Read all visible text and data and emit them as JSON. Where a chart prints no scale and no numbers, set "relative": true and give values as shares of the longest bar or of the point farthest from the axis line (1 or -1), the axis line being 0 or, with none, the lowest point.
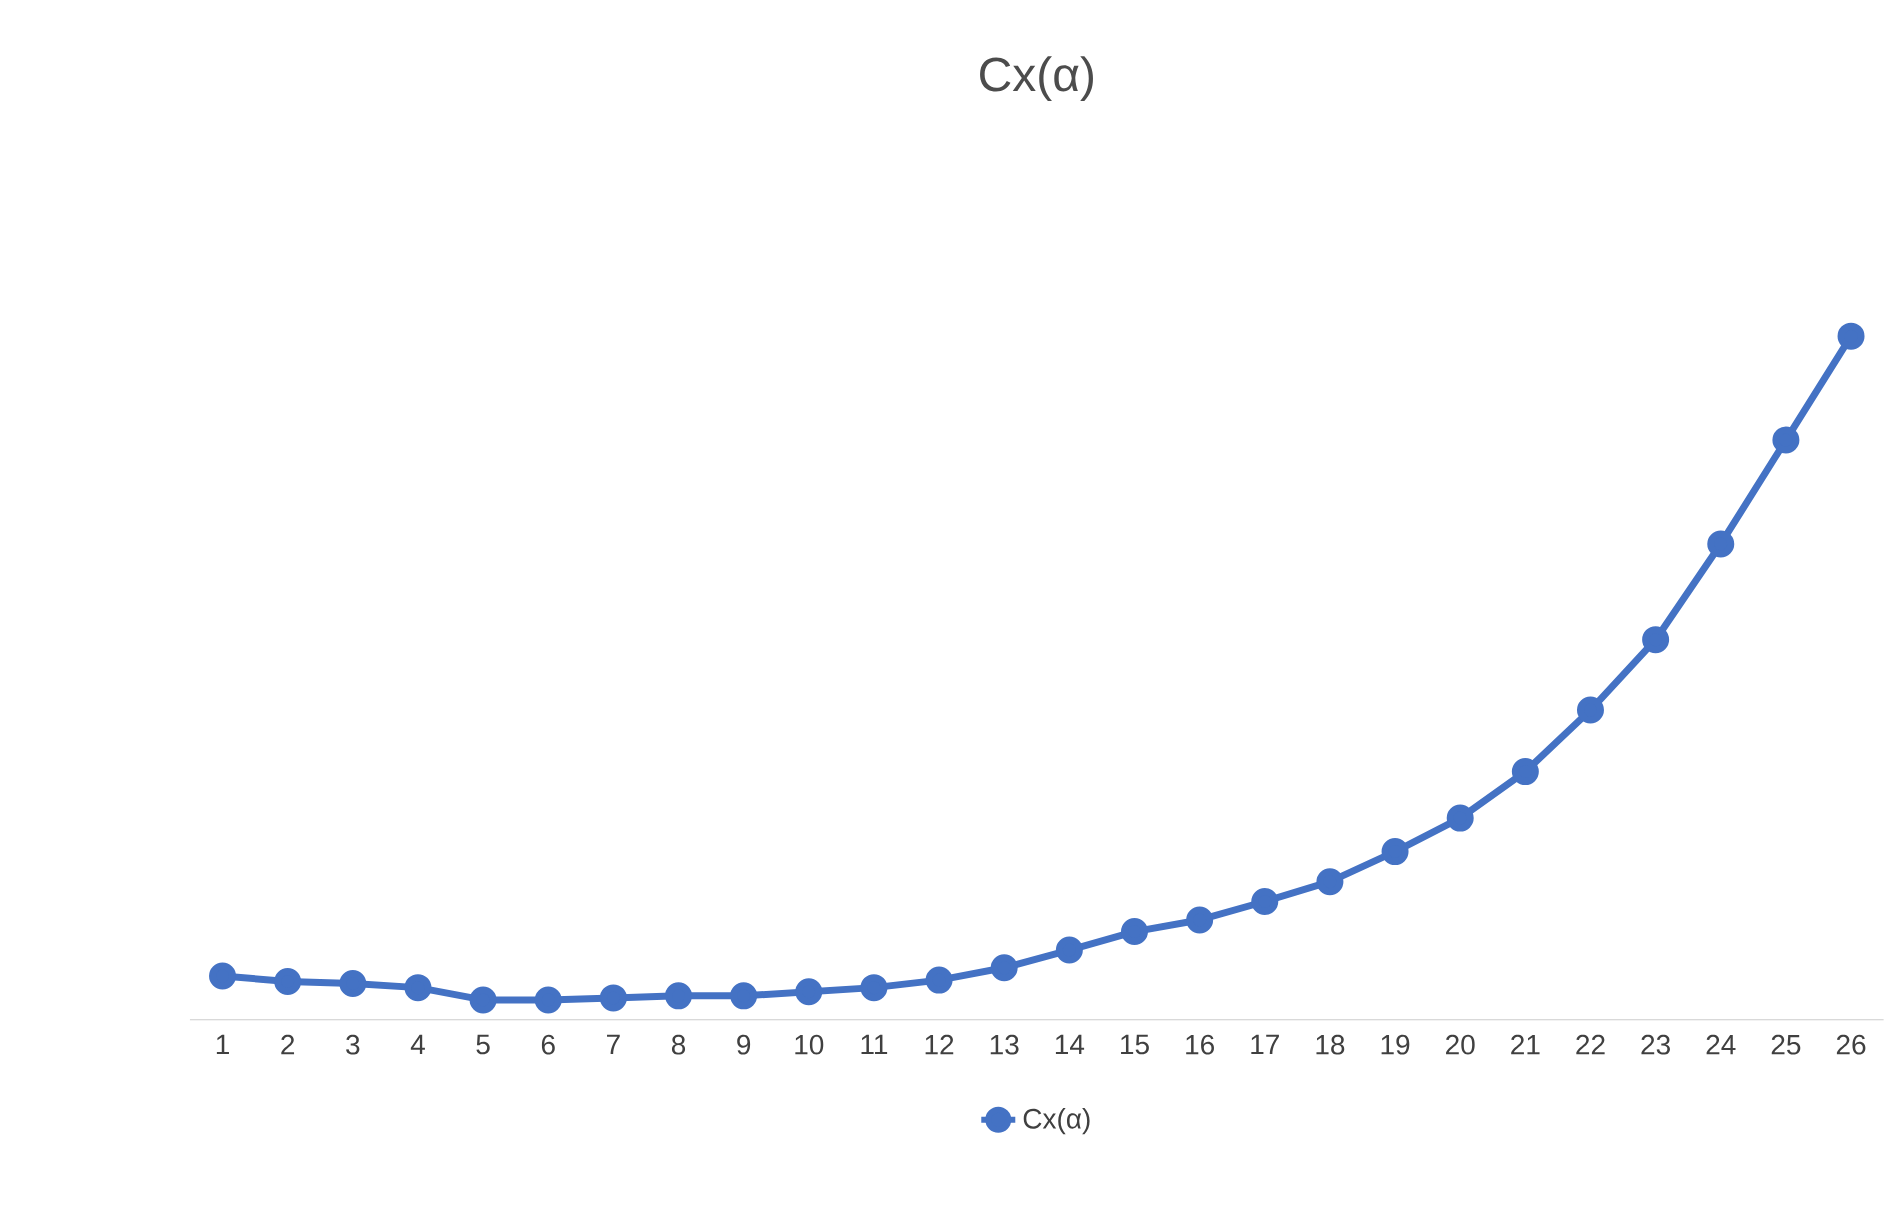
{
  "chart_data": {
    "type": "line",
    "title": "Cx(α)",
    "categories": [
      "1",
      "2",
      "3",
      "4",
      "5",
      "6",
      "7",
      "8",
      "9",
      "10",
      "11",
      "12",
      "13",
      "14",
      "15",
      "16",
      "17",
      "18",
      "19",
      "20",
      "21",
      "22",
      "23",
      "24",
      "25",
      "26"
    ],
    "series": [
      {
        "name": "Cx(α)",
        "color": "#4472c4",
        "values": [
          0.064,
          0.056,
          0.053,
          0.047,
          0.029,
          0.029,
          0.032,
          0.035,
          0.035,
          0.041,
          0.047,
          0.058,
          0.076,
          0.102,
          0.129,
          0.146,
          0.173,
          0.202,
          0.246,
          0.295,
          0.363,
          0.453,
          0.556,
          0.696,
          0.848,
          1
        ]
      }
    ],
    "relative": true,
    "marker": "circle",
    "line_style": "solid",
    "grid": false,
    "legend": "bottom"
  }
}
